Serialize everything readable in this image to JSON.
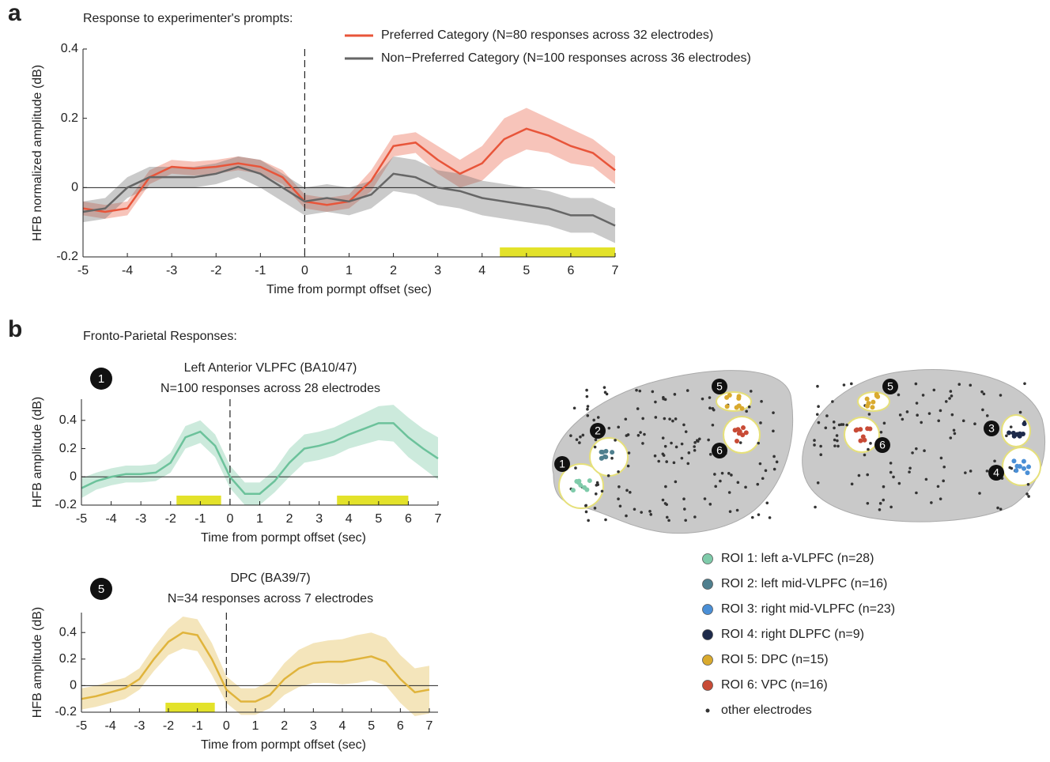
{
  "panels": [
    "a",
    "b"
  ],
  "panel_b_title": "Fronto-Parietal Responses:",
  "chart_data": [
    {
      "type": "line",
      "title": "Response to experimenter's prompts:",
      "xlabel": "Time from pormpt offset (sec)",
      "ylabel": "HFB normalized amplitude (dB)",
      "x": [
        -5,
        -4.5,
        -4,
        -3.5,
        -3,
        -2.5,
        -2,
        -1.5,
        -1,
        -0.5,
        0,
        0.5,
        1,
        1.5,
        2,
        2.5,
        3,
        3.5,
        4,
        4.5,
        5,
        5.5,
        6,
        6.5,
        7
      ],
      "series": [
        {
          "name": "Preferred Category (N=80 responses across 32 electrodes)",
          "color": "#e8553a",
          "values": [
            -0.06,
            -0.07,
            -0.06,
            0.03,
            0.06,
            0.055,
            0.06,
            0.07,
            0.06,
            0.03,
            -0.04,
            -0.05,
            -0.04,
            0.02,
            0.12,
            0.13,
            0.08,
            0.04,
            0.07,
            0.14,
            0.17,
            0.15,
            0.12,
            0.1,
            0.05
          ],
          "error": [
            0.02,
            0.02,
            0.02,
            0.02,
            0.02,
            0.02,
            0.02,
            0.02,
            0.02,
            0.02,
            0.02,
            0.02,
            0.02,
            0.03,
            0.03,
            0.03,
            0.04,
            0.04,
            0.05,
            0.06,
            0.06,
            0.05,
            0.05,
            0.04,
            0.04
          ]
        },
        {
          "name": "Non−Preferred Category (N=100 responses across 36 electrodes)",
          "color": "#666666",
          "values": [
            -0.07,
            -0.06,
            0.0,
            0.03,
            0.03,
            0.03,
            0.04,
            0.06,
            0.04,
            0.0,
            -0.04,
            -0.03,
            -0.04,
            -0.02,
            0.04,
            0.03,
            0.0,
            -0.01,
            -0.03,
            -0.04,
            -0.05,
            -0.06,
            -0.08,
            -0.08,
            -0.11
          ],
          "error": [
            0.03,
            0.03,
            0.03,
            0.03,
            0.03,
            0.03,
            0.03,
            0.03,
            0.04,
            0.04,
            0.04,
            0.04,
            0.04,
            0.04,
            0.05,
            0.05,
            0.05,
            0.05,
            0.05,
            0.05,
            0.05,
            0.05,
            0.05,
            0.05,
            0.05
          ]
        }
      ],
      "sig_spans": [
        [
          4.4,
          7
        ]
      ],
      "xlim": [
        -5,
        7
      ],
      "xticks": [
        -5,
        -4,
        -3,
        -2,
        -1,
        0,
        1,
        2,
        3,
        4,
        5,
        6,
        7
      ],
      "ylim": [
        -0.2,
        0.4
      ],
      "yticks": [
        -0.2,
        0,
        0.2,
        0.4
      ]
    },
    {
      "type": "line",
      "label": "1",
      "title": "Left Anterior VLPFC (BA10/47)",
      "subtitle": "N=100 responses across 28 electrodes",
      "xlabel": "Time from pormpt offset (sec)",
      "ylabel": "HFB amplitude (dB)",
      "x": [
        -5,
        -4.5,
        -4,
        -3.5,
        -3,
        -2.5,
        -2,
        -1.5,
        -1,
        -0.5,
        0,
        0.5,
        1,
        1.5,
        2,
        2.5,
        3,
        3.5,
        4,
        4.5,
        5,
        5.5,
        6,
        6.5,
        7
      ],
      "series": [
        {
          "color": "#6cc29b",
          "values": [
            -0.08,
            -0.03,
            0.0,
            0.02,
            0.02,
            0.03,
            0.1,
            0.28,
            0.32,
            0.22,
            0.0,
            -0.12,
            -0.12,
            -0.03,
            0.1,
            0.2,
            0.22,
            0.25,
            0.3,
            0.34,
            0.38,
            0.38,
            0.28,
            0.2,
            0.13
          ],
          "error": [
            0.07,
            0.06,
            0.06,
            0.06,
            0.06,
            0.06,
            0.07,
            0.08,
            0.08,
            0.08,
            0.08,
            0.08,
            0.08,
            0.08,
            0.1,
            0.1,
            0.1,
            0.1,
            0.1,
            0.11,
            0.12,
            0.13,
            0.14,
            0.14,
            0.15
          ]
        }
      ],
      "sig_spans": [
        [
          -1.8,
          -0.3
        ],
        [
          3.6,
          6
        ]
      ],
      "xlim": [
        -5,
        7
      ],
      "xticks": [
        -5,
        -4,
        -3,
        -2,
        -1,
        0,
        1,
        2,
        3,
        4,
        5,
        6,
        7
      ],
      "ylim": [
        -0.2,
        0.55
      ],
      "yticks": [
        -0.2,
        0,
        0.2,
        0.4
      ]
    },
    {
      "type": "line",
      "label": "5",
      "title": "DPC (BA39/7)",
      "subtitle": "N=34 responses across 7 electrodes",
      "xlabel": "Time from pormpt offset (sec)",
      "ylabel": "HFB amplitude (dB)",
      "x": [
        -5,
        -4.5,
        -4,
        -3.5,
        -3,
        -2.5,
        -2,
        -1.5,
        -1,
        -0.5,
        0,
        0.5,
        1,
        1.5,
        2,
        2.5,
        3,
        3.5,
        4,
        4.5,
        5,
        5.5,
        6,
        6.5,
        7
      ],
      "series": [
        {
          "color": "#e0b43c",
          "values": [
            -0.1,
            -0.08,
            -0.05,
            -0.02,
            0.05,
            0.2,
            0.33,
            0.4,
            0.38,
            0.2,
            -0.03,
            -0.12,
            -0.12,
            -0.07,
            0.05,
            0.13,
            0.17,
            0.18,
            0.18,
            0.2,
            0.22,
            0.18,
            0.05,
            -0.05,
            -0.03
          ],
          "error": [
            0.08,
            0.08,
            0.08,
            0.08,
            0.08,
            0.09,
            0.1,
            0.12,
            0.12,
            0.12,
            0.1,
            0.1,
            0.1,
            0.1,
            0.12,
            0.14,
            0.15,
            0.16,
            0.17,
            0.18,
            0.18,
            0.18,
            0.18,
            0.18,
            0.18
          ]
        }
      ],
      "sig_spans": [
        [
          -2.1,
          -0.4
        ]
      ],
      "xlim": [
        -5,
        7.3
      ],
      "xticks": [
        -5,
        -4,
        -3,
        -2,
        -1,
        0,
        1,
        2,
        3,
        4,
        5,
        6,
        7
      ],
      "ylim": [
        -0.2,
        0.55
      ],
      "yticks": [
        -0.2,
        0,
        0.2,
        0.4
      ]
    }
  ],
  "brain_markers_left": [
    "1",
    "2",
    "5",
    "6"
  ],
  "brain_markers_right": [
    "3",
    "4",
    "5",
    "6"
  ],
  "brain_legend": [
    {
      "label": "ROI 1: left a-VLPFC (n=28)",
      "color": "#7fcbaa"
    },
    {
      "label": "ROI 2: left mid-VLPFC (n=16)",
      "color": "#4f7f8e"
    },
    {
      "label": "ROI 3: right mid-VLPFC (n=23)",
      "color": "#4a8fd6"
    },
    {
      "label": "ROI 4: right DLPFC (n=9)",
      "color": "#1d2a4a"
    },
    {
      "label": "ROI 5: DPC (n=15)",
      "color": "#d9aa2e"
    },
    {
      "label": "ROI 6: VPC (n=16)",
      "color": "#c84b36"
    },
    {
      "label": "other electrodes",
      "color": "#333333"
    }
  ]
}
